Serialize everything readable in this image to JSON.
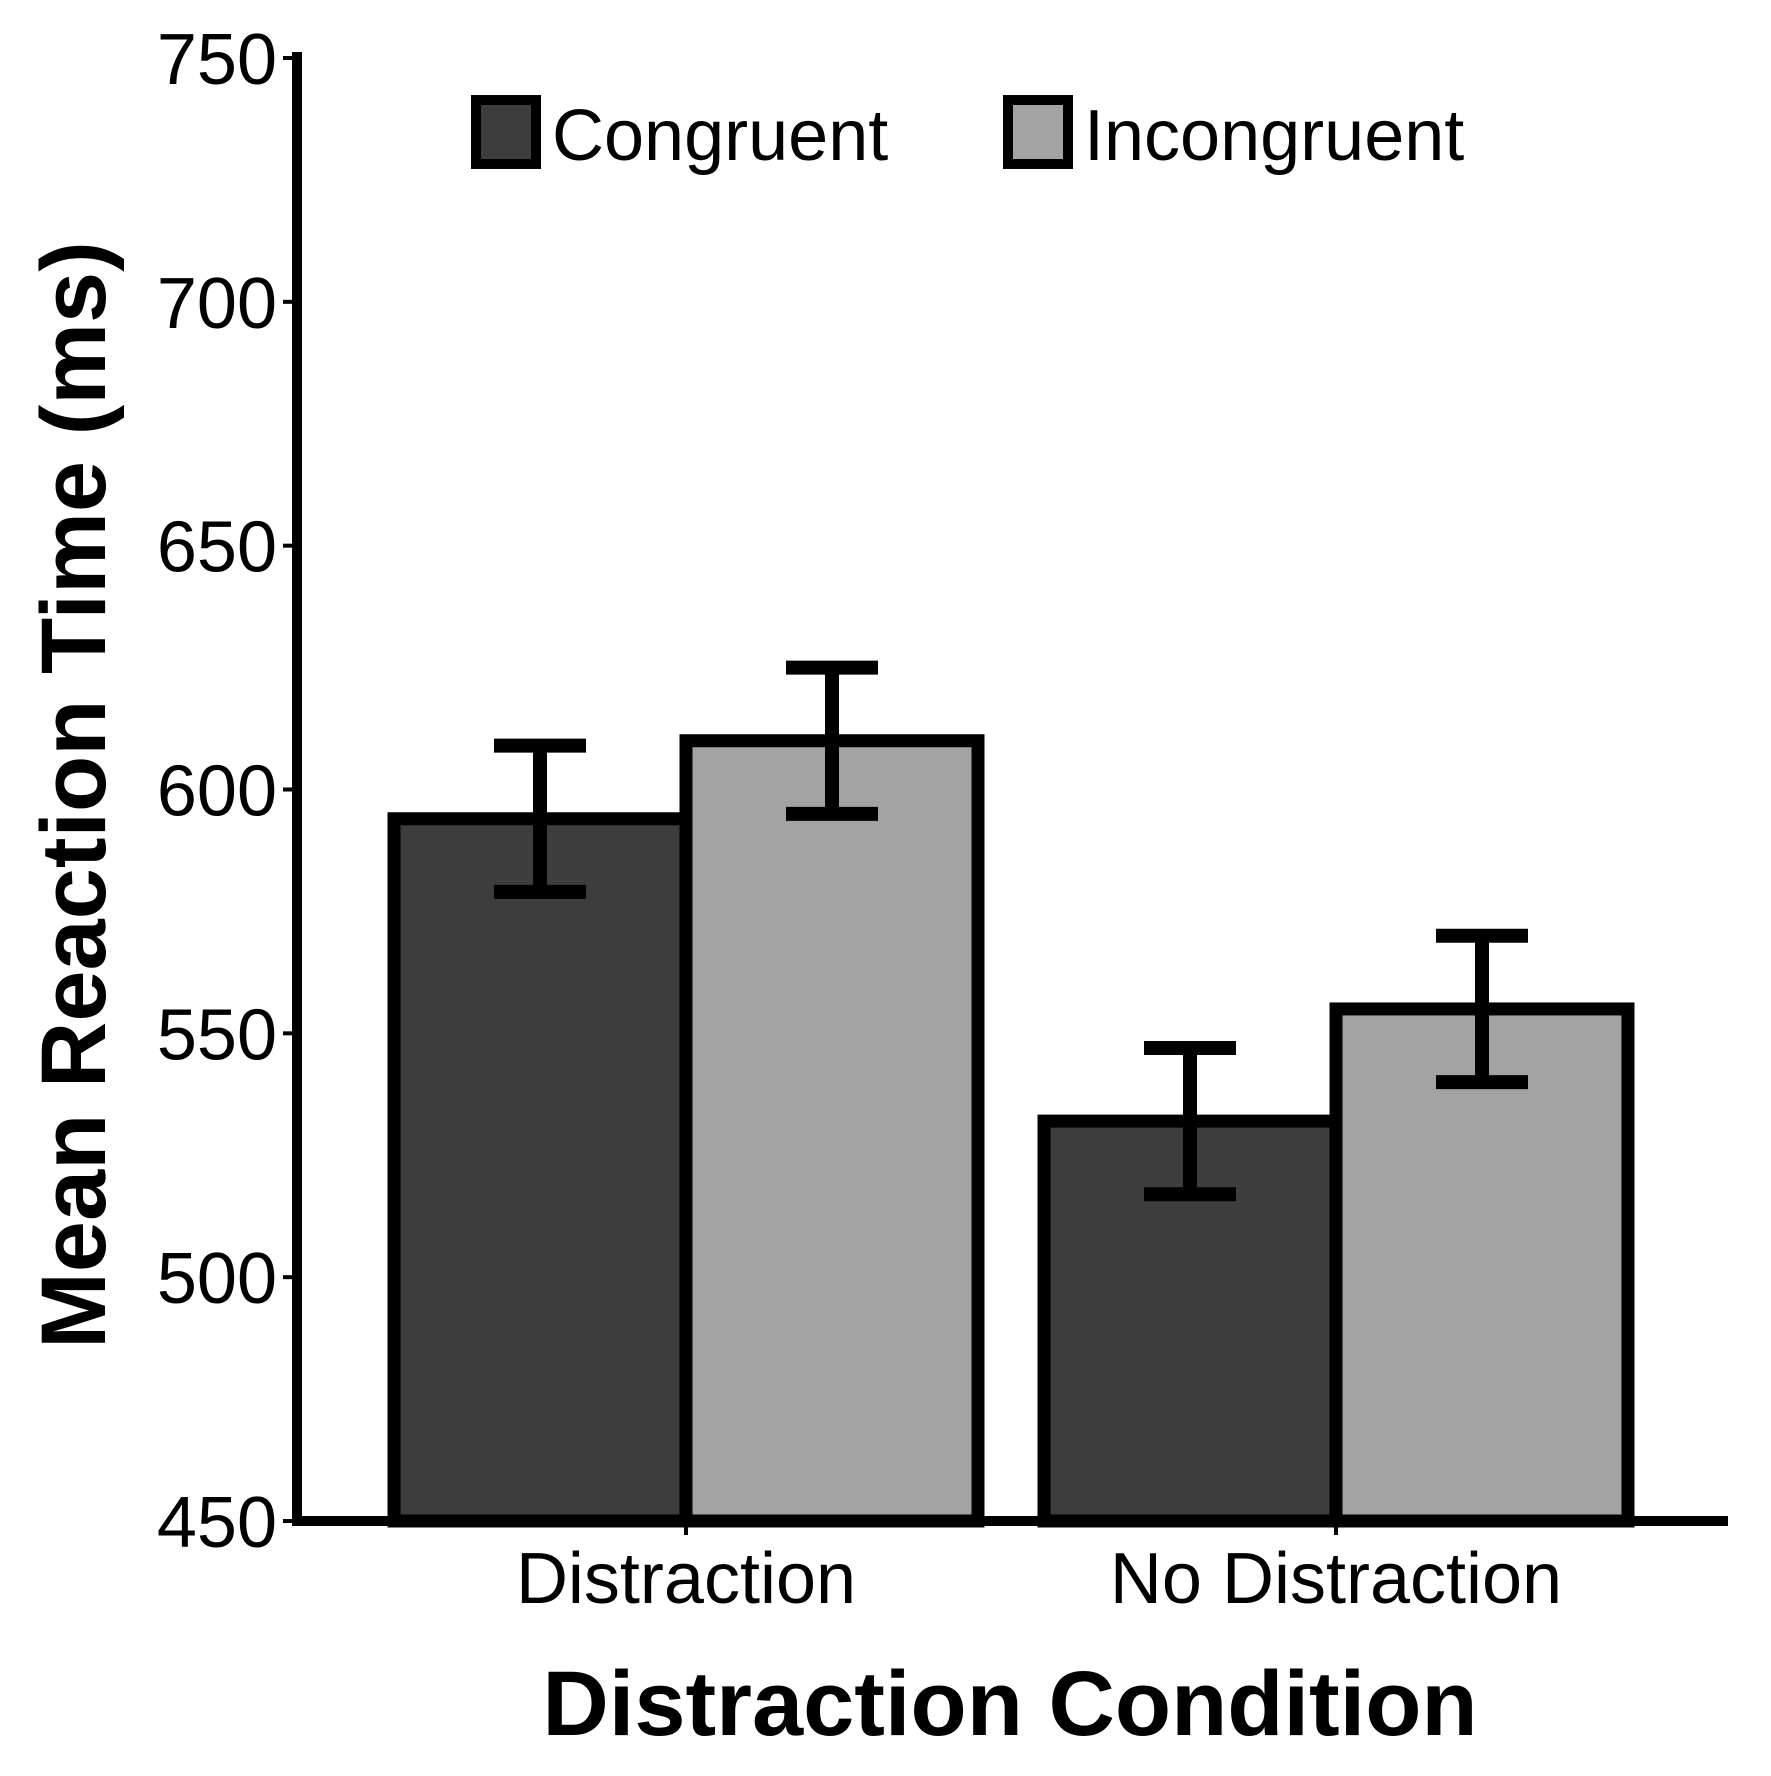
{
  "chart_data": {
    "type": "bar",
    "title": "",
    "xlabel": "Distraction Condition",
    "ylabel": "Mean Reaction Time (ms)",
    "categories": [
      "Distraction",
      "No Distraction"
    ],
    "series": [
      {
        "name": "Congruent",
        "values": [
          594,
          532
        ],
        "error": [
          15,
          15
        ],
        "color": "#3d3d3d"
      },
      {
        "name": "Incongruent",
        "values": [
          610,
          555
        ],
        "error": [
          15,
          15
        ],
        "color": "#a3a3a3"
      }
    ],
    "ylim": [
      450,
      750
    ],
    "yticks": [
      "450",
      "500",
      "550",
      "600",
      "650",
      "700",
      "750"
    ],
    "grid": false,
    "legend": "top"
  }
}
